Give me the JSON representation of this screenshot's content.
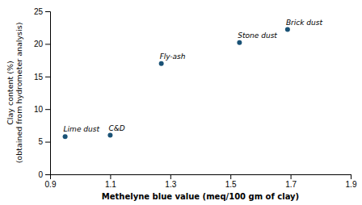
{
  "chart_data": {
    "type": "scatter",
    "x": [
      0.95,
      1.1,
      1.27,
      1.53,
      1.69
    ],
    "values": [
      5.8,
      6.0,
      17.0,
      20.2,
      22.2
    ],
    "labels": [
      "Lime dust",
      "C&D",
      "Fly-ash",
      "Stone dust",
      "Brick dust"
    ],
    "color": "#1a5276",
    "xlabel": "Methelyne blue value (meq/100 gm of clay)",
    "ylabel": "Clay content (%)\n(obtained from hydrometer analysis)",
    "xlim": [
      0.9,
      1.9
    ],
    "ylim": [
      0,
      25
    ],
    "xticks": [
      0.9,
      1.1,
      1.3,
      1.5,
      1.7,
      1.9
    ],
    "yticks": [
      0,
      5,
      10,
      15,
      20,
      25
    ],
    "grid": false
  }
}
